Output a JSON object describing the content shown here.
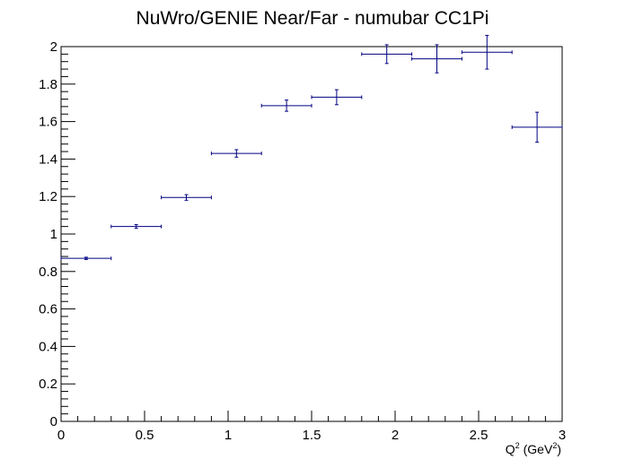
{
  "chart_data": {
    "type": "scatter",
    "title": "NuWro/GENIE Near/Far - numubar CC1Pi",
    "xlabel": "Q",
    "xlabel_sup": "2",
    "xlabel_unit": "(GeV",
    "xlabel_unit_sup": "2",
    "xlabel_close": ")",
    "ylabel": "",
    "xlim": [
      0,
      3
    ],
    "ylim": [
      0,
      2
    ],
    "x_ticks": [
      0,
      0.5,
      1,
      1.5,
      2,
      2.5,
      3
    ],
    "x_tick_labels": [
      "0",
      "0.5",
      "1",
      "1.5",
      "2",
      "2.5",
      "3"
    ],
    "y_ticks": [
      0,
      0.2,
      0.4,
      0.6,
      0.8,
      1,
      1.2,
      1.4,
      1.6,
      1.8,
      2
    ],
    "y_tick_labels": [
      "0",
      "0.2",
      "0.4",
      "0.6",
      "0.8",
      "1",
      "1.2",
      "1.4",
      "1.6",
      "1.8",
      "2"
    ],
    "grid": false,
    "color": "#000080",
    "points": [
      {
        "x": 0.15,
        "xerr": 0.15,
        "y": 0.87,
        "yerr": 0.006
      },
      {
        "x": 0.45,
        "xerr": 0.15,
        "y": 1.04,
        "yerr": 0.01
      },
      {
        "x": 0.75,
        "xerr": 0.15,
        "y": 1.195,
        "yerr": 0.015
      },
      {
        "x": 1.05,
        "xerr": 0.15,
        "y": 1.43,
        "yerr": 0.02
      },
      {
        "x": 1.35,
        "xerr": 0.15,
        "y": 1.685,
        "yerr": 0.03
      },
      {
        "x": 1.65,
        "xerr": 0.15,
        "y": 1.73,
        "yerr": 0.04
      },
      {
        "x": 1.95,
        "xerr": 0.15,
        "y": 1.96,
        "yerr": 0.05
      },
      {
        "x": 2.25,
        "xerr": 0.15,
        "y": 1.935,
        "yerr": 0.075
      },
      {
        "x": 2.55,
        "xerr": 0.15,
        "y": 1.97,
        "yerr": 0.09
      },
      {
        "x": 2.85,
        "xerr": 0.15,
        "y": 1.57,
        "yerr": 0.08
      }
    ]
  }
}
